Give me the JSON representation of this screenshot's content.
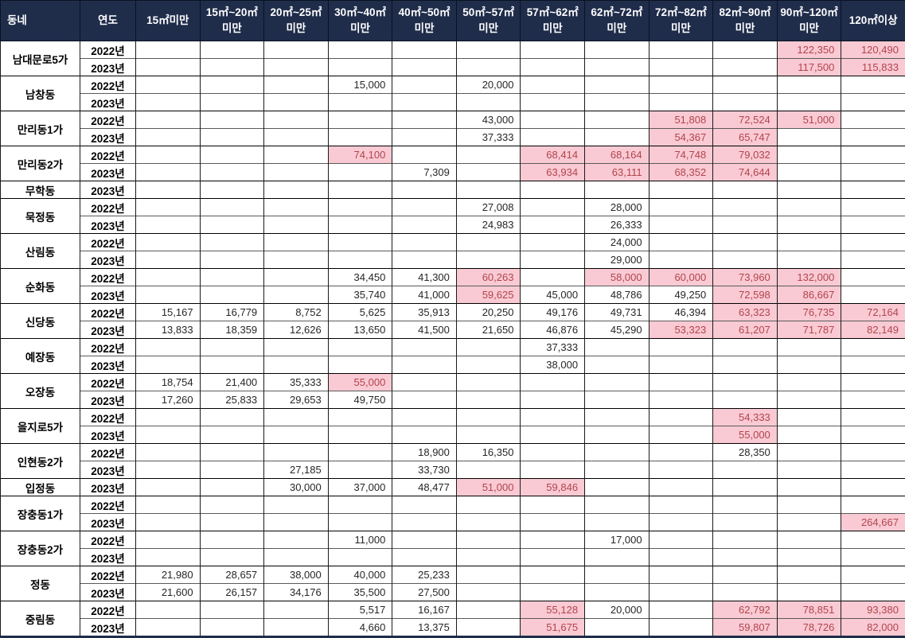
{
  "colors": {
    "header_bg": "#1F2C4A",
    "header_text": "#FFFFFF",
    "highlight_bg": "#F9CAD3",
    "highlight_text": "#B2444E",
    "grid_line": "#1A1A1A",
    "bottom_border": "#1F2C4A"
  },
  "table": {
    "corner_label": "동네",
    "year_label": "연도",
    "size_headers": [
      "15㎡미만",
      "15㎡~20㎡미만",
      "20㎡~25㎡미만",
      "30㎡~40㎡미만",
      "40㎡~50㎡미만",
      "50㎡~57㎡미만",
      "57㎡~62㎡미만",
      "62㎡~72㎡미만",
      "72㎡~82㎡미만",
      "82㎡~90㎡미만",
      "90㎡~120㎡미만",
      "120㎡이상"
    ],
    "groups": [
      {
        "name": "남대문로5가",
        "rows": [
          {
            "year": "2022년",
            "cells": [
              null,
              null,
              null,
              null,
              null,
              null,
              null,
              null,
              null,
              null,
              {
                "v": "122,350",
                "h": true
              },
              {
                "v": "120,490",
                "h": true
              }
            ]
          },
          {
            "year": "2023년",
            "cells": [
              null,
              null,
              null,
              null,
              null,
              null,
              null,
              null,
              null,
              null,
              {
                "v": "117,500",
                "h": true
              },
              {
                "v": "115,833",
                "h": true
              }
            ]
          }
        ]
      },
      {
        "name": "남창동",
        "rows": [
          {
            "year": "2022년",
            "cells": [
              null,
              null,
              null,
              {
                "v": "15,000"
              },
              null,
              {
                "v": "20,000"
              },
              null,
              null,
              null,
              null,
              null,
              null
            ]
          },
          {
            "year": "2023년",
            "cells": [
              null,
              null,
              null,
              null,
              null,
              null,
              null,
              null,
              null,
              null,
              null,
              null
            ]
          }
        ]
      },
      {
        "name": "만리동1가",
        "rows": [
          {
            "year": "2022년",
            "cells": [
              null,
              null,
              null,
              null,
              null,
              {
                "v": "43,000"
              },
              null,
              null,
              {
                "v": "51,808",
                "h": true
              },
              {
                "v": "72,524",
                "h": true
              },
              {
                "v": "51,000",
                "h": true
              },
              null
            ]
          },
          {
            "year": "2023년",
            "cells": [
              null,
              null,
              null,
              null,
              null,
              {
                "v": "37,333"
              },
              null,
              null,
              {
                "v": "54,367",
                "h": true
              },
              {
                "v": "65,747",
                "h": true
              },
              null,
              null
            ]
          }
        ]
      },
      {
        "name": "만리동2가",
        "rows": [
          {
            "year": "2022년",
            "cells": [
              null,
              null,
              null,
              {
                "v": "74,100",
                "h": true
              },
              null,
              null,
              {
                "v": "68,414",
                "h": true
              },
              {
                "v": "68,164",
                "h": true
              },
              {
                "v": "74,748",
                "h": true
              },
              {
                "v": "79,032",
                "h": true
              },
              null,
              null
            ]
          },
          {
            "year": "2023년",
            "cells": [
              null,
              null,
              null,
              null,
              {
                "v": "7,309"
              },
              null,
              {
                "v": "63,934",
                "h": true
              },
              {
                "v": "63,111",
                "h": true
              },
              {
                "v": "68,352",
                "h": true
              },
              {
                "v": "74,644",
                "h": true
              },
              null,
              null
            ]
          }
        ]
      },
      {
        "name": "무학동",
        "rows": [
          {
            "year": "2023년",
            "cells": [
              null,
              null,
              null,
              null,
              null,
              null,
              null,
              null,
              null,
              null,
              null,
              null
            ]
          }
        ]
      },
      {
        "name": "묵정동",
        "rows": [
          {
            "year": "2022년",
            "cells": [
              null,
              null,
              null,
              null,
              null,
              {
                "v": "27,008"
              },
              null,
              {
                "v": "28,000"
              },
              null,
              null,
              null,
              null
            ]
          },
          {
            "year": "2023년",
            "cells": [
              null,
              null,
              null,
              null,
              null,
              {
                "v": "24,983"
              },
              null,
              {
                "v": "26,333"
              },
              null,
              null,
              null,
              null
            ]
          }
        ]
      },
      {
        "name": "산림동",
        "rows": [
          {
            "year": "2022년",
            "cells": [
              null,
              null,
              null,
              null,
              null,
              null,
              null,
              {
                "v": "24,000"
              },
              null,
              null,
              null,
              null
            ]
          },
          {
            "year": "2023년",
            "cells": [
              null,
              null,
              null,
              null,
              null,
              null,
              null,
              {
                "v": "29,000"
              },
              null,
              null,
              null,
              null
            ]
          }
        ]
      },
      {
        "name": "순화동",
        "rows": [
          {
            "year": "2022년",
            "cells": [
              null,
              null,
              null,
              {
                "v": "34,450"
              },
              {
                "v": "41,300"
              },
              {
                "v": "60,263",
                "h": true
              },
              null,
              {
                "v": "58,000",
                "h": true
              },
              {
                "v": "60,000",
                "h": true
              },
              {
                "v": "73,960",
                "h": true
              },
              {
                "v": "132,000",
                "h": true
              },
              null
            ]
          },
          {
            "year": "2023년",
            "cells": [
              null,
              null,
              null,
              {
                "v": "35,740"
              },
              {
                "v": "41,000"
              },
              {
                "v": "59,625",
                "h": true
              },
              {
                "v": "45,000"
              },
              {
                "v": "48,786"
              },
              {
                "v": "49,250"
              },
              {
                "v": "72,598",
                "h": true
              },
              {
                "v": "86,667",
                "h": true
              },
              null
            ]
          }
        ]
      },
      {
        "name": "신당동",
        "rows": [
          {
            "year": "2022년",
            "cells": [
              {
                "v": "15,167"
              },
              {
                "v": "16,779"
              },
              {
                "v": "8,752"
              },
              {
                "v": "5,625"
              },
              {
                "v": "35,913"
              },
              {
                "v": "20,250"
              },
              {
                "v": "49,176"
              },
              {
                "v": "49,731"
              },
              {
                "v": "46,394"
              },
              {
                "v": "63,323",
                "h": true
              },
              {
                "v": "76,735",
                "h": true
              },
              {
                "v": "72,164",
                "h": true
              }
            ]
          },
          {
            "year": "2023년",
            "cells": [
              {
                "v": "13,833"
              },
              {
                "v": "18,359"
              },
              {
                "v": "12,626"
              },
              {
                "v": "13,650"
              },
              {
                "v": "41,500"
              },
              {
                "v": "21,650"
              },
              {
                "v": "46,876"
              },
              {
                "v": "45,290"
              },
              {
                "v": "53,323",
                "h": true
              },
              {
                "v": "61,207",
                "h": true
              },
              {
                "v": "71,787",
                "h": true
              },
              {
                "v": "82,149",
                "h": true
              }
            ]
          }
        ]
      },
      {
        "name": "예장동",
        "rows": [
          {
            "year": "2022년",
            "cells": [
              null,
              null,
              null,
              null,
              null,
              null,
              {
                "v": "37,333"
              },
              null,
              null,
              null,
              null,
              null
            ]
          },
          {
            "year": "2023년",
            "cells": [
              null,
              null,
              null,
              null,
              null,
              null,
              {
                "v": "38,000"
              },
              null,
              null,
              null,
              null,
              null
            ]
          }
        ]
      },
      {
        "name": "오장동",
        "rows": [
          {
            "year": "2022년",
            "cells": [
              {
                "v": "18,754"
              },
              {
                "v": "21,400"
              },
              {
                "v": "35,333"
              },
              {
                "v": "55,000",
                "h": true
              },
              null,
              null,
              null,
              null,
              null,
              null,
              null,
              null
            ]
          },
          {
            "year": "2023년",
            "cells": [
              {
                "v": "17,260"
              },
              {
                "v": "25,833"
              },
              {
                "v": "29,653"
              },
              {
                "v": "49,750"
              },
              null,
              null,
              null,
              null,
              null,
              null,
              null,
              null
            ]
          }
        ]
      },
      {
        "name": "을지로5가",
        "rows": [
          {
            "year": "2022년",
            "cells": [
              null,
              null,
              null,
              null,
              null,
              null,
              null,
              null,
              null,
              {
                "v": "54,333",
                "h": true
              },
              null,
              null
            ]
          },
          {
            "year": "2023년",
            "cells": [
              null,
              null,
              null,
              null,
              null,
              null,
              null,
              null,
              null,
              {
                "v": "55,000",
                "h": true
              },
              null,
              null
            ]
          }
        ]
      },
      {
        "name": "인현동2가",
        "rows": [
          {
            "year": "2022년",
            "cells": [
              null,
              null,
              null,
              null,
              {
                "v": "18,900"
              },
              {
                "v": "16,350"
              },
              null,
              null,
              null,
              {
                "v": "28,350"
              },
              null,
              null
            ]
          },
          {
            "year": "2023년",
            "cells": [
              null,
              null,
              {
                "v": "27,185"
              },
              null,
              {
                "v": "33,730"
              },
              null,
              null,
              null,
              null,
              null,
              null,
              null
            ]
          }
        ]
      },
      {
        "name": "입정동",
        "rows": [
          {
            "year": "2023년",
            "cells": [
              null,
              null,
              {
                "v": "30,000"
              },
              {
                "v": "37,000"
              },
              {
                "v": "48,477"
              },
              {
                "v": "51,000",
                "h": true
              },
              {
                "v": "59,846",
                "h": true
              },
              null,
              null,
              null,
              null,
              null
            ]
          }
        ]
      },
      {
        "name": "장충동1가",
        "rows": [
          {
            "year": "2022년",
            "cells": [
              null,
              null,
              null,
              null,
              null,
              null,
              null,
              null,
              null,
              null,
              null,
              null
            ]
          },
          {
            "year": "2023년",
            "cells": [
              null,
              null,
              null,
              null,
              null,
              null,
              null,
              null,
              null,
              null,
              null,
              {
                "v": "264,667",
                "h": true
              }
            ]
          }
        ]
      },
      {
        "name": "장충동2가",
        "rows": [
          {
            "year": "2022년",
            "cells": [
              null,
              null,
              null,
              {
                "v": "11,000"
              },
              null,
              null,
              null,
              {
                "v": "17,000"
              },
              null,
              null,
              null,
              null
            ]
          },
          {
            "year": "2023년",
            "cells": [
              null,
              null,
              null,
              null,
              null,
              null,
              null,
              null,
              null,
              null,
              null,
              null
            ]
          }
        ]
      },
      {
        "name": "정동",
        "rows": [
          {
            "year": "2022년",
            "cells": [
              {
                "v": "21,980"
              },
              {
                "v": "28,657"
              },
              {
                "v": "38,000"
              },
              {
                "v": "40,000"
              },
              {
                "v": "25,233"
              },
              null,
              null,
              null,
              null,
              null,
              null,
              null
            ]
          },
          {
            "year": "2023년",
            "cells": [
              {
                "v": "21,600"
              },
              {
                "v": "26,157"
              },
              {
                "v": "34,176"
              },
              {
                "v": "35,500"
              },
              {
                "v": "27,500"
              },
              null,
              null,
              null,
              null,
              null,
              null,
              null
            ]
          }
        ]
      },
      {
        "name": "중림동",
        "rows": [
          {
            "year": "2022년",
            "cells": [
              null,
              null,
              null,
              {
                "v": "5,517"
              },
              {
                "v": "16,167"
              },
              null,
              {
                "v": "55,128",
                "h": true
              },
              {
                "v": "20,000"
              },
              null,
              {
                "v": "62,792",
                "h": true
              },
              {
                "v": "78,851",
                "h": true
              },
              {
                "v": "93,380",
                "h": true
              }
            ]
          },
          {
            "year": "2023년",
            "cells": [
              null,
              null,
              null,
              {
                "v": "4,660"
              },
              {
                "v": "13,375"
              },
              null,
              {
                "v": "51,675",
                "h": true
              },
              null,
              null,
              {
                "v": "59,807",
                "h": true
              },
              {
                "v": "78,726",
                "h": true
              },
              {
                "v": "82,000",
                "h": true
              }
            ]
          }
        ]
      }
    ]
  }
}
